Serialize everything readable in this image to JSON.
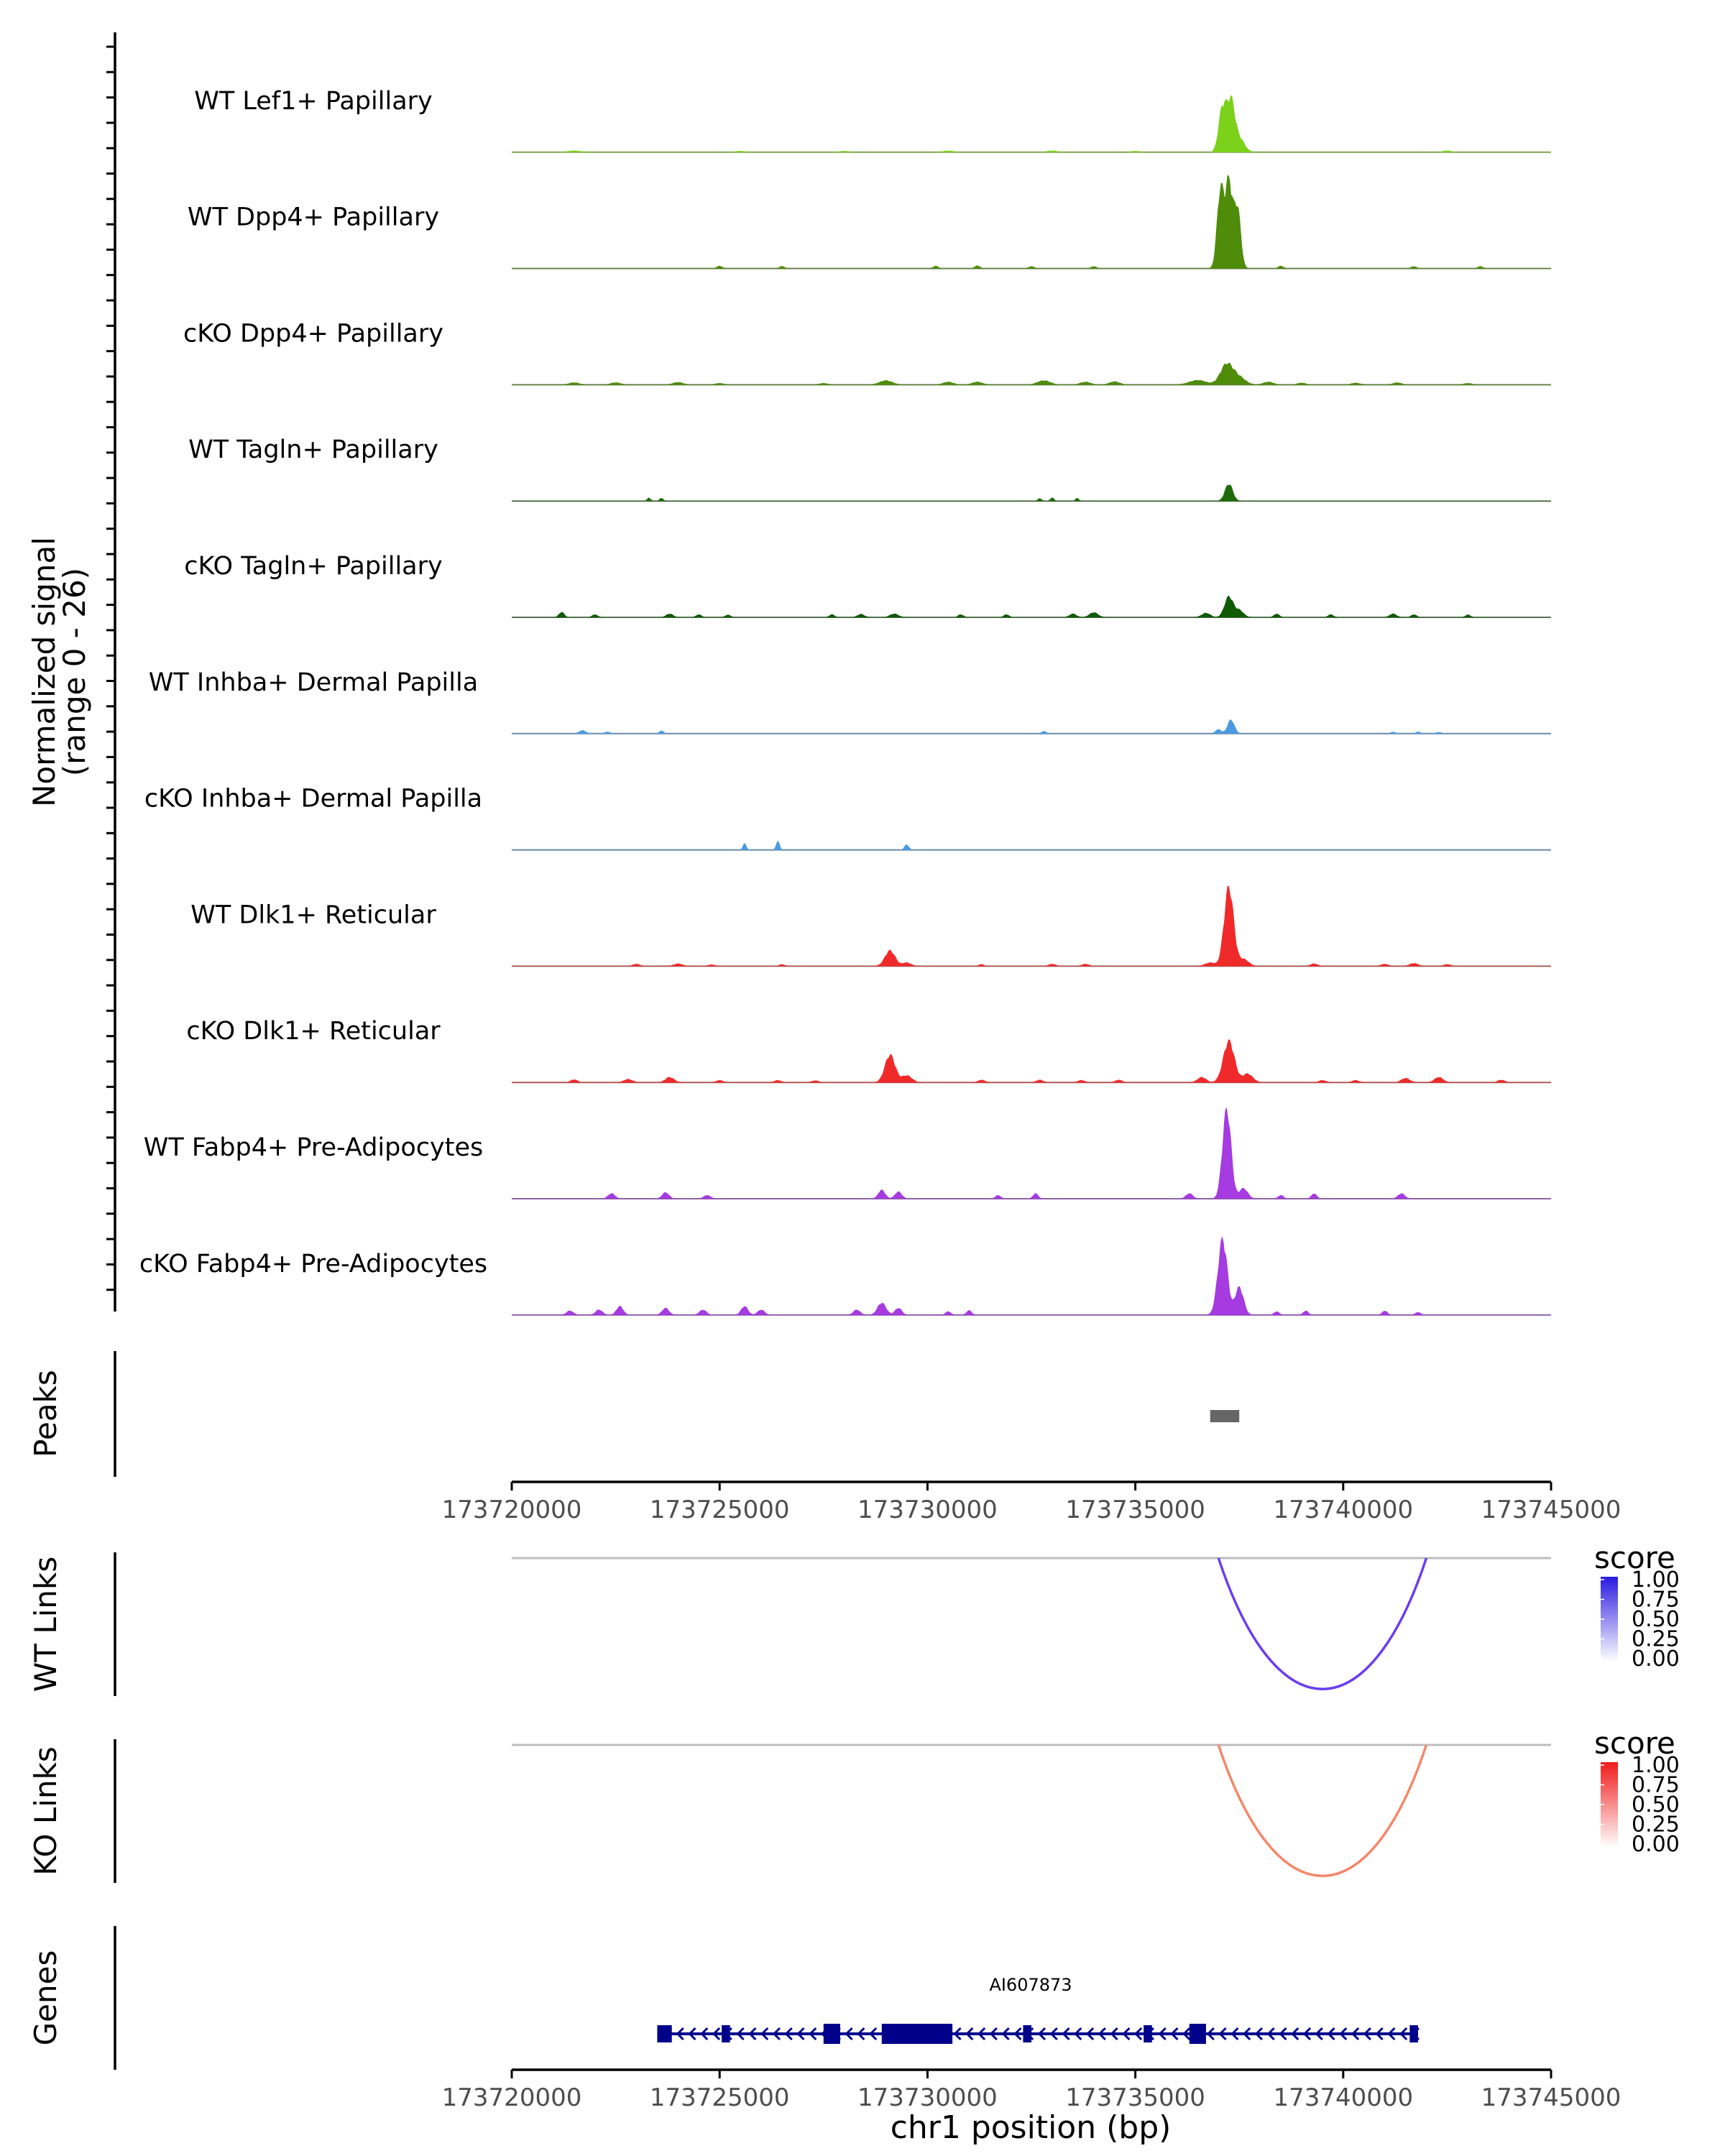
{
  "coverage": {
    "y_label_line1": "Normalized signal",
    "y_label_line2": "(range 0 - 26)",
    "range": [
      0,
      26
    ],
    "region_start": 173720000,
    "region_end": 173745000,
    "tracks": [
      {
        "label": "WT Lef1+ Papillary",
        "color": "#7CD11A",
        "bumps": [
          [
            173721500,
            0.4,
            150
          ],
          [
            173725500,
            0.3,
            100
          ],
          [
            173728000,
            0.3,
            100
          ],
          [
            173730500,
            0.4,
            120
          ],
          [
            173733000,
            0.4,
            120
          ],
          [
            173735000,
            0.3,
            100
          ],
          [
            173737100,
            13,
            90
          ],
          [
            173737300,
            14,
            90
          ],
          [
            173737500,
            4,
            120
          ],
          [
            173742500,
            0.4,
            100
          ]
        ]
      },
      {
        "label": "WT Dpp4+ Papillary",
        "color": "#4E8C0A",
        "bumps": [
          [
            173725000,
            0.7,
            60
          ],
          [
            173726500,
            0.6,
            60
          ],
          [
            173730200,
            0.7,
            60
          ],
          [
            173731200,
            0.8,
            60
          ],
          [
            173732500,
            0.6,
            60
          ],
          [
            173734000,
            0.6,
            60
          ],
          [
            173737050,
            23,
            80
          ],
          [
            173737250,
            25,
            80
          ],
          [
            173737450,
            18,
            80
          ],
          [
            173738500,
            0.7,
            60
          ],
          [
            173741700,
            0.6,
            60
          ],
          [
            173743300,
            0.6,
            60
          ]
        ]
      },
      {
        "label": "cKO Dpp4+ Papillary",
        "color": "#4E8C0A",
        "bumps": [
          [
            173721500,
            0.6,
            120
          ],
          [
            173722500,
            0.6,
            120
          ],
          [
            173724000,
            0.7,
            120
          ],
          [
            173725000,
            0.4,
            100
          ],
          [
            173727500,
            0.4,
            100
          ],
          [
            173729000,
            1.2,
            150
          ],
          [
            173730500,
            0.8,
            120
          ],
          [
            173731200,
            0.8,
            120
          ],
          [
            173732800,
            1.2,
            150
          ],
          [
            173733800,
            0.8,
            120
          ],
          [
            173734500,
            0.9,
            120
          ],
          [
            173736500,
            1.3,
            200
          ],
          [
            173737200,
            6,
            150
          ],
          [
            173737500,
            2,
            150
          ],
          [
            173738200,
            0.8,
            120
          ],
          [
            173739000,
            0.5,
            100
          ],
          [
            173740300,
            0.5,
            100
          ],
          [
            173741300,
            0.6,
            100
          ],
          [
            173743000,
            0.4,
            100
          ]
        ]
      },
      {
        "label": "WT Tagln+ Papillary",
        "color": "#1F6B0B",
        "bumps": [
          [
            173723300,
            0.9,
            40
          ],
          [
            173723600,
            0.9,
            40
          ],
          [
            173732700,
            0.8,
            40
          ],
          [
            173733000,
            1.0,
            40
          ],
          [
            173733600,
            0.8,
            40
          ],
          [
            173737250,
            5,
            90
          ]
        ]
      },
      {
        "label": "cKO Tagln+ Papillary",
        "color": "#0F5A05",
        "bumps": [
          [
            173721200,
            1.5,
            60
          ],
          [
            173722000,
            0.8,
            60
          ],
          [
            173723800,
            1.0,
            80
          ],
          [
            173724500,
            0.8,
            60
          ],
          [
            173725200,
            0.7,
            60
          ],
          [
            173727700,
            0.8,
            60
          ],
          [
            173728400,
            0.9,
            80
          ],
          [
            173729200,
            1.0,
            100
          ],
          [
            173730800,
            0.8,
            60
          ],
          [
            173731900,
            0.8,
            60
          ],
          [
            173733500,
            1.0,
            80
          ],
          [
            173734000,
            1.4,
            100
          ],
          [
            173736700,
            1.2,
            100
          ],
          [
            173737250,
            6,
            100
          ],
          [
            173737500,
            2,
            100
          ],
          [
            173738400,
            1.0,
            60
          ],
          [
            173739700,
            0.8,
            60
          ],
          [
            173741200,
            1.0,
            80
          ],
          [
            173741700,
            0.8,
            60
          ],
          [
            173743000,
            0.7,
            60
          ]
        ]
      },
      {
        "label": "WT Inhba+ Dermal Papilla",
        "color": "#4C9BE0",
        "bumps": [
          [
            173721700,
            0.9,
            80
          ],
          [
            173722300,
            0.5,
            60
          ],
          [
            173723600,
            0.8,
            50
          ],
          [
            173732800,
            0.7,
            50
          ],
          [
            173737000,
            1.2,
            70
          ],
          [
            173737300,
            4,
            80
          ],
          [
            173741200,
            0.5,
            50
          ],
          [
            173741800,
            0.5,
            50
          ],
          [
            173742300,
            0.4,
            60
          ]
        ]
      },
      {
        "label": "cKO Inhba+ Dermal Papilla",
        "color": "#4C9BE0",
        "bumps": [
          [
            173725600,
            1.8,
            40
          ],
          [
            173726400,
            2.5,
            40
          ],
          [
            173729500,
            1.5,
            50
          ]
        ]
      },
      {
        "label": "WT Dlk1+ Reticular",
        "color": "#F02A2A",
        "bumps": [
          [
            173723000,
            0.6,
            80
          ],
          [
            173724000,
            0.7,
            100
          ],
          [
            173724800,
            0.4,
            80
          ],
          [
            173726500,
            0.5,
            60
          ],
          [
            173729100,
            4.5,
            120
          ],
          [
            173729500,
            1,
            100
          ],
          [
            173731300,
            0.5,
            60
          ],
          [
            173733000,
            0.6,
            80
          ],
          [
            173733800,
            0.6,
            80
          ],
          [
            173736800,
            1.0,
            120
          ],
          [
            173737250,
            23,
            110
          ],
          [
            173737600,
            2,
            120
          ],
          [
            173739300,
            0.7,
            80
          ],
          [
            173741000,
            0.6,
            80
          ],
          [
            173741700,
            0.8,
            100
          ],
          [
            173742500,
            0.5,
            80
          ]
        ]
      },
      {
        "label": "cKO Dlk1+ Reticular",
        "color": "#F02A2A",
        "bumps": [
          [
            173721500,
            0.8,
            80
          ],
          [
            173722800,
            0.9,
            100
          ],
          [
            173723800,
            1.5,
            100
          ],
          [
            173725000,
            0.6,
            80
          ],
          [
            173726400,
            0.6,
            80
          ],
          [
            173727300,
            0.5,
            80
          ],
          [
            173729100,
            8,
            120
          ],
          [
            173729500,
            2,
            120
          ],
          [
            173731300,
            0.7,
            80
          ],
          [
            173732700,
            0.7,
            80
          ],
          [
            173733700,
            0.6,
            80
          ],
          [
            173734600,
            0.7,
            80
          ],
          [
            173736600,
            1.5,
            100
          ],
          [
            173737250,
            12,
            130
          ],
          [
            173737700,
            2.5,
            120
          ],
          [
            173739500,
            0.6,
            80
          ],
          [
            173740300,
            0.6,
            80
          ],
          [
            173741500,
            1.2,
            100
          ],
          [
            173742300,
            1.5,
            100
          ],
          [
            173743800,
            0.7,
            80
          ]
        ]
      },
      {
        "label": "WT Fabp4+ Pre-Adipocytes",
        "color": "#A53BE0",
        "bumps": [
          [
            173722400,
            1.5,
            80
          ],
          [
            173723700,
            1.8,
            80
          ],
          [
            173724700,
            1.0,
            80
          ],
          [
            173728900,
            2.5,
            80
          ],
          [
            173729300,
            2.0,
            80
          ],
          [
            173731700,
            1.0,
            60
          ],
          [
            173732600,
            1.5,
            60
          ],
          [
            173736300,
            1.5,
            80
          ],
          [
            173737200,
            26,
            100
          ],
          [
            173737600,
            3,
            100
          ],
          [
            173738500,
            1.0,
            60
          ],
          [
            173739300,
            1.5,
            60
          ],
          [
            173741400,
            1.5,
            80
          ]
        ]
      },
      {
        "label": "cKO Fabp4+ Pre-Adipocytes",
        "color": "#A53BE0",
        "bumps": [
          [
            173721400,
            1.2,
            80
          ],
          [
            173722100,
            1.5,
            80
          ],
          [
            173722600,
            2.5,
            80
          ],
          [
            173723700,
            2.0,
            80
          ],
          [
            173724600,
            1.5,
            80
          ],
          [
            173725600,
            2.5,
            80
          ],
          [
            173726000,
            1.5,
            80
          ],
          [
            173728300,
            1.5,
            80
          ],
          [
            173728900,
            3.5,
            100
          ],
          [
            173729300,
            2.0,
            80
          ],
          [
            173730500,
            1.0,
            60
          ],
          [
            173731000,
            1.3,
            60
          ],
          [
            173737100,
            22,
            110
          ],
          [
            173737500,
            8,
            100
          ],
          [
            173738400,
            1.0,
            60
          ],
          [
            173739100,
            1.2,
            60
          ],
          [
            173741000,
            1.2,
            60
          ],
          [
            173741800,
            0.8,
            60
          ]
        ]
      }
    ]
  },
  "peaks": {
    "label": "Peaks",
    "items": [
      {
        "start": 173736800,
        "end": 173737500
      }
    ]
  },
  "axis1": {
    "ticks": [
      173720000,
      173725000,
      173730000,
      173735000,
      173740000,
      173745000
    ],
    "tick_labels": [
      "173720000",
      "173725000",
      "173730000",
      "173735000",
      "173740000",
      "173745000"
    ]
  },
  "links": [
    {
      "label": "WT Links",
      "color": "#6A3CF0",
      "start": 173737000,
      "end": 173742000,
      "score": 0.7,
      "legend_title": "score",
      "legend_top": "#2A1AE0",
      "legend_bottom": "#FFFFFF",
      "legend_labels": [
        "1.00",
        "0.75",
        "0.50",
        "0.25",
        "0.00"
      ]
    },
    {
      "label": "KO Links",
      "color": "#F4876A",
      "start": 173737000,
      "end": 173742000,
      "score": 0.55,
      "legend_title": "score",
      "legend_top": "#F01A1A",
      "legend_bottom": "#FFFFFF",
      "legend_labels": [
        "1.00",
        "0.75",
        "0.50",
        "0.25",
        "0.00"
      ]
    }
  ],
  "genes": {
    "label": "Genes",
    "name": "AI607873",
    "color": "#00008B",
    "start": 173723500,
    "end": 173741800,
    "exons": [
      {
        "start": 173723500,
        "end": 173723850,
        "kind": "utr"
      },
      {
        "start": 173725050,
        "end": 173725250,
        "kind": "utr"
      },
      {
        "start": 173727500,
        "end": 173727900,
        "kind": "cds"
      },
      {
        "start": 173728900,
        "end": 173730600,
        "kind": "cds"
      },
      {
        "start": 173732300,
        "end": 173732500,
        "kind": "utr"
      },
      {
        "start": 173735200,
        "end": 173735400,
        "kind": "utr"
      },
      {
        "start": 173736300,
        "end": 173736700,
        "kind": "cds"
      },
      {
        "start": 173741600,
        "end": 173741800,
        "kind": "utr"
      }
    ]
  },
  "axis2": {
    "ticks": [
      173720000,
      173725000,
      173730000,
      173735000,
      173740000,
      173745000
    ],
    "tick_labels": [
      "173720000",
      "173725000",
      "173730000",
      "173735000",
      "173740000",
      "173745000"
    ],
    "xlabel": "chr1 position (bp)"
  }
}
